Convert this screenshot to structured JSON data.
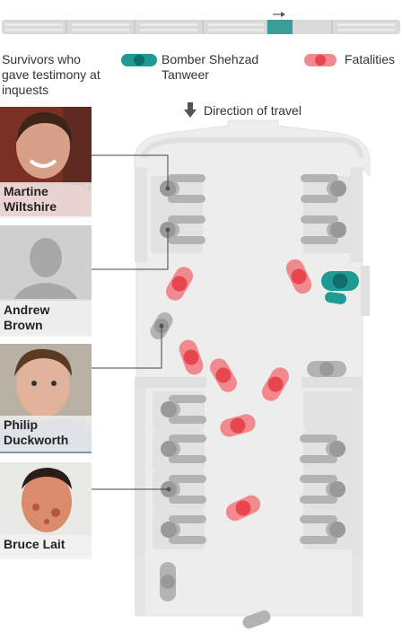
{
  "legend": {
    "survivors": "Survivors who gave testimony at inquests",
    "bomber": "Bomber Shehzad Tanweer",
    "fatalities": "Fatalities",
    "direction": "Direction of travel"
  },
  "survivors": [
    {
      "name": "Martine Wiltshire"
    },
    {
      "name": "Andrew Brown"
    },
    {
      "name": "Philip Duckworth"
    },
    {
      "name": "Bruce Lait"
    }
  ],
  "colors": {
    "fatality": "#e8464e",
    "bomber": "#1f9a95",
    "seat": "#d4d4d4",
    "survivor_marker": "#8a8a8a",
    "carriage": "#e6e6e6"
  }
}
